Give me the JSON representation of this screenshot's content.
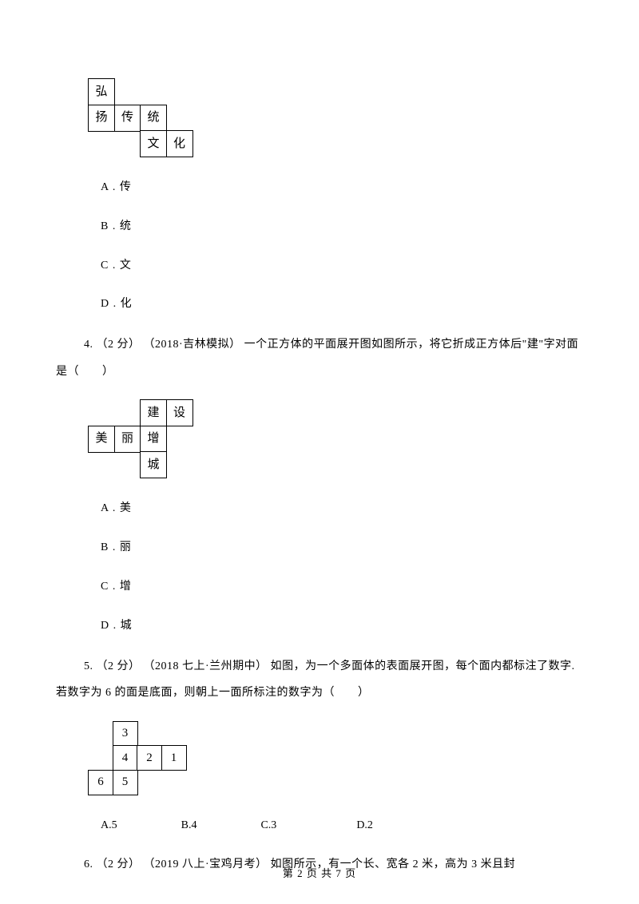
{
  "figureA": {
    "cellSize": 34,
    "cells": [
      {
        "row": 0,
        "col": 0,
        "label": "弘"
      },
      {
        "row": 1,
        "col": 0,
        "label": "扬"
      },
      {
        "row": 1,
        "col": 1,
        "label": "传"
      },
      {
        "row": 1,
        "col": 2,
        "label": "统"
      },
      {
        "row": 2,
        "col": 2,
        "label": "文"
      },
      {
        "row": 2,
        "col": 3,
        "label": "化"
      }
    ]
  },
  "q3": {
    "options": [
      {
        "letter": "A",
        "text": "传"
      },
      {
        "letter": "B",
        "text": "统"
      },
      {
        "letter": "C",
        "text": "文"
      },
      {
        "letter": "D",
        "text": "化"
      }
    ]
  },
  "q4": {
    "prompt": "4. （2 分） （2018·吉林模拟） 一个正方体的平面展开图如图所示，将它折成正方体后\"建\"字对面是（　　）",
    "figure": {
      "cellSize": 34,
      "cells": [
        {
          "row": 0,
          "col": 2,
          "label": "建"
        },
        {
          "row": 0,
          "col": 3,
          "label": "设"
        },
        {
          "row": 1,
          "col": 0,
          "label": "美"
        },
        {
          "row": 1,
          "col": 1,
          "label": "丽"
        },
        {
          "row": 1,
          "col": 2,
          "label": "增"
        },
        {
          "row": 2,
          "col": 2,
          "label": "城"
        }
      ]
    },
    "options": [
      {
        "letter": "A",
        "text": "美"
      },
      {
        "letter": "B",
        "text": "丽"
      },
      {
        "letter": "C",
        "text": "增"
      },
      {
        "letter": "D",
        "text": "城"
      }
    ]
  },
  "q5": {
    "prompt": "5. （2 分） （2018 七上·兰州期中） 如图，为一个多面体的表面展开图，每个面内都标注了数字.若数字为 6 的面是底面，则朝上一面所标注的数字为（　　）",
    "figure": {
      "cellSize": 32,
      "cells": [
        {
          "row": 0,
          "col": 1,
          "label": "3"
        },
        {
          "row": 1,
          "col": 1,
          "label": "4"
        },
        {
          "row": 1,
          "col": 2,
          "label": "2"
        },
        {
          "row": 1,
          "col": 3,
          "label": "1"
        },
        {
          "row": 2,
          "col": 0,
          "label": "6"
        },
        {
          "row": 2,
          "col": 1,
          "label": "5"
        }
      ]
    },
    "inlineOptions": [
      {
        "letter": "A",
        "text": "5",
        "gap": 80
      },
      {
        "letter": "B",
        "text": "4",
        "gap": 80
      },
      {
        "letter": "C",
        "text": "3",
        "gap": 100
      },
      {
        "letter": "D",
        "text": "2",
        "gap": 0
      }
    ]
  },
  "q6": {
    "prompt": "6. （2 分） （2019 八上·宝鸡月考） 如图所示，有一个长、宽各 2 米，高为 3 米且封"
  },
  "footer": {
    "text": "第 2 页 共 7 页"
  }
}
